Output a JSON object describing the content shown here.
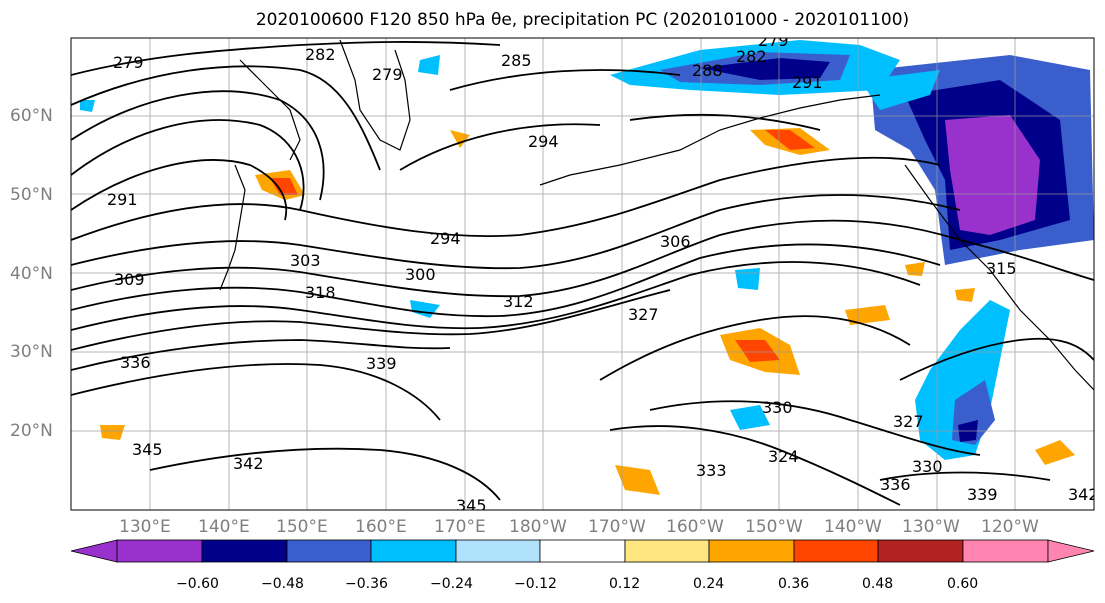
{
  "title": "2020100600 F120 850 hPa θe, precipitation PC (2020101000 - 2020101100)",
  "map": {
    "lat_labels": [
      "60°N",
      "50°N",
      "40°N",
      "30°N",
      "20°N"
    ],
    "lon_labels": [
      "130°E",
      "140°E",
      "150°E",
      "160°E",
      "170°E",
      "180°W",
      "170°W",
      "160°W",
      "150°W",
      "140°W",
      "130°W",
      "120°W"
    ],
    "contour_labels": [
      "279",
      "282",
      "279",
      "285",
      "288",
      "282",
      "279",
      "291",
      "294",
      "291",
      "294",
      "306",
      "303",
      "300",
      "318",
      "312",
      "327",
      "309",
      "336",
      "339",
      "330",
      "345",
      "342",
      "333",
      "324",
      "327",
      "330",
      "336",
      "339",
      "345",
      "342",
      "315"
    ]
  },
  "colorbar": {
    "ticks": [
      "−0.60",
      "−0.48",
      "−0.36",
      "−0.24",
      "−0.12",
      "0.12",
      "0.24",
      "0.36",
      "0.48",
      "0.60"
    ],
    "colors": [
      "#9932cc",
      "#00008b",
      "#3a5fcd",
      "#00bfff",
      "#afe1fb",
      "#ffffff",
      "#ffe680",
      "#ffa500",
      "#ff4500",
      "#b22222",
      "#ff85b0"
    ]
  }
}
